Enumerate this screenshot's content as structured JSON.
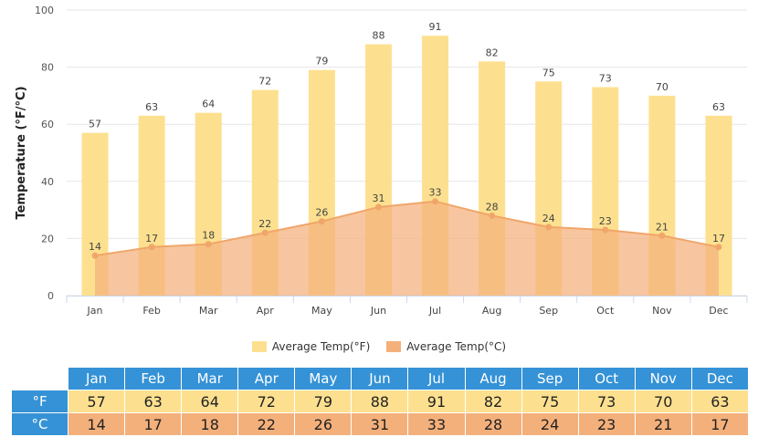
{
  "chart_data": {
    "type": "bar",
    "categories": [
      "Jan",
      "Feb",
      "Mar",
      "Apr",
      "May",
      "Jun",
      "Jul",
      "Aug",
      "Sep",
      "Oct",
      "Nov",
      "Dec"
    ],
    "series": [
      {
        "name": "Average Temp(°F)",
        "type": "bar",
        "values": [
          57,
          63,
          64,
          72,
          79,
          88,
          91,
          82,
          75,
          73,
          70,
          63
        ],
        "color": "#fde08f"
      },
      {
        "name": "Average Temp(°C)",
        "type": "area",
        "values": [
          14,
          17,
          18,
          22,
          26,
          31,
          33,
          28,
          24,
          23,
          21,
          17
        ],
        "color": "#f4b07b"
      }
    ],
    "ylabel": "Temperature (°F/°C)",
    "ylim": [
      0,
      100
    ],
    "yticks": [
      0,
      20,
      40,
      60,
      80,
      100
    ],
    "grid": true,
    "legend": "bottom-center"
  },
  "table": {
    "months": [
      "Jan",
      "Feb",
      "Mar",
      "Apr",
      "May",
      "Jun",
      "Jul",
      "Aug",
      "Sep",
      "Oct",
      "Nov",
      "Dec"
    ],
    "f_label": "°F",
    "c_label": "°C",
    "f_values": [
      "57",
      "63",
      "64",
      "72",
      "79",
      "88",
      "91",
      "82",
      "75",
      "73",
      "70",
      "63"
    ],
    "c_values": [
      "14",
      "17",
      "18",
      "22",
      "26",
      "31",
      "33",
      "28",
      "24",
      "23",
      "21",
      "17"
    ]
  },
  "colors": {
    "header_blue": "#3592d6",
    "bar_fill": "#fde08f",
    "area_fill": "#f4b07b",
    "line_stroke": "#f0a66a",
    "grid": "#e6e6e6"
  }
}
